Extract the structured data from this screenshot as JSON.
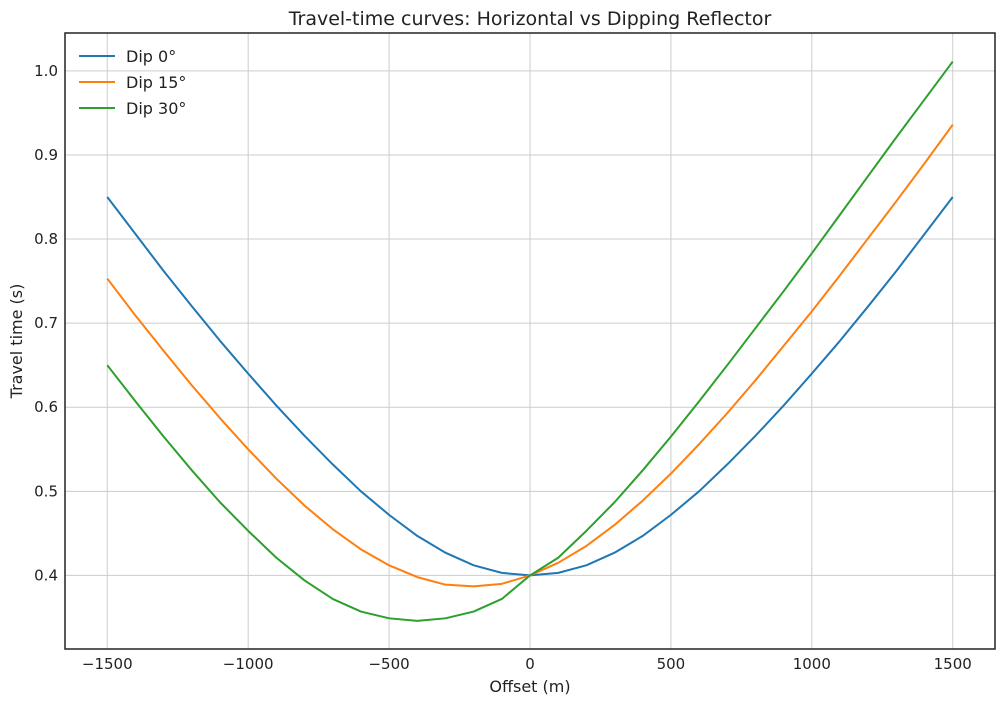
{
  "chart_data": {
    "type": "line",
    "title": "Travel-time curves: Horizontal vs Dipping Reflector",
    "xlabel": "Offset (m)",
    "ylabel": "Travel time (s)",
    "xlim": [
      -1650,
      1650
    ],
    "ylim": [
      0.3125,
      1.045
    ],
    "xticks": [
      -1500,
      -1000,
      -500,
      0,
      500,
      1000,
      1500
    ],
    "xtick_labels": [
      "−1500",
      "−1000",
      "−500",
      "0",
      "500",
      "1000",
      "1500"
    ],
    "yticks": [
      0.4,
      0.5,
      0.6,
      0.7,
      0.8,
      0.9,
      1.0
    ],
    "ytick_labels": [
      "0.4",
      "0.5",
      "0.6",
      "0.7",
      "0.8",
      "0.9",
      "1.0"
    ],
    "grid": true,
    "legend_position": "top-left",
    "series": [
      {
        "name": "Dip 0°",
        "color": "#1f77b4",
        "x": [
          -1500,
          -1400,
          -1300,
          -1200,
          -1100,
          -1000,
          -900,
          -800,
          -700,
          -600,
          -500,
          -400,
          -300,
          -200,
          -100,
          0,
          100,
          200,
          300,
          400,
          500,
          600,
          700,
          800,
          900,
          1000,
          1100,
          1200,
          1300,
          1400,
          1500
        ],
        "y": [
          0.85,
          0.806,
          0.762,
          0.72,
          0.679,
          0.64,
          0.602,
          0.566,
          0.532,
          0.5,
          0.472,
          0.447,
          0.427,
          0.412,
          0.403,
          0.4,
          0.403,
          0.412,
          0.427,
          0.447,
          0.472,
          0.5,
          0.532,
          0.566,
          0.602,
          0.64,
          0.679,
          0.72,
          0.762,
          0.806,
          0.85
        ]
      },
      {
        "name": "Dip 15°",
        "color": "#ff7f0e",
        "x": [
          -1500,
          -1400,
          -1300,
          -1200,
          -1100,
          -1000,
          -900,
          -800,
          -700,
          -600,
          -500,
          -400,
          -300,
          -200,
          -100,
          0,
          100,
          200,
          300,
          400,
          500,
          600,
          700,
          800,
          900,
          1000,
          1100,
          1200,
          1300,
          1400,
          1500
        ],
        "y": [
          0.753,
          0.709,
          0.667,
          0.626,
          0.587,
          0.55,
          0.515,
          0.483,
          0.455,
          0.431,
          0.412,
          0.398,
          0.389,
          0.387,
          0.39,
          0.4,
          0.415,
          0.435,
          0.46,
          0.489,
          0.521,
          0.556,
          0.593,
          0.632,
          0.673,
          0.714,
          0.757,
          0.801,
          0.845,
          0.89,
          0.936
        ]
      },
      {
        "name": "Dip 30°",
        "color": "#2ca02c",
        "x": [
          -1500,
          -1400,
          -1300,
          -1200,
          -1100,
          -1000,
          -900,
          -800,
          -700,
          -600,
          -500,
          -400,
          -300,
          -200,
          -100,
          0,
          100,
          200,
          300,
          400,
          500,
          600,
          700,
          800,
          900,
          1000,
          1100,
          1200,
          1300,
          1400,
          1500
        ],
        "y": [
          0.65,
          0.607,
          0.565,
          0.525,
          0.487,
          0.453,
          0.421,
          0.394,
          0.372,
          0.357,
          0.349,
          0.346,
          0.349,
          0.357,
          0.372,
          0.4,
          0.421,
          0.453,
          0.487,
          0.525,
          0.565,
          0.607,
          0.65,
          0.694,
          0.738,
          0.783,
          0.829,
          0.875,
          0.921,
          0.966,
          1.011
        ]
      }
    ]
  }
}
